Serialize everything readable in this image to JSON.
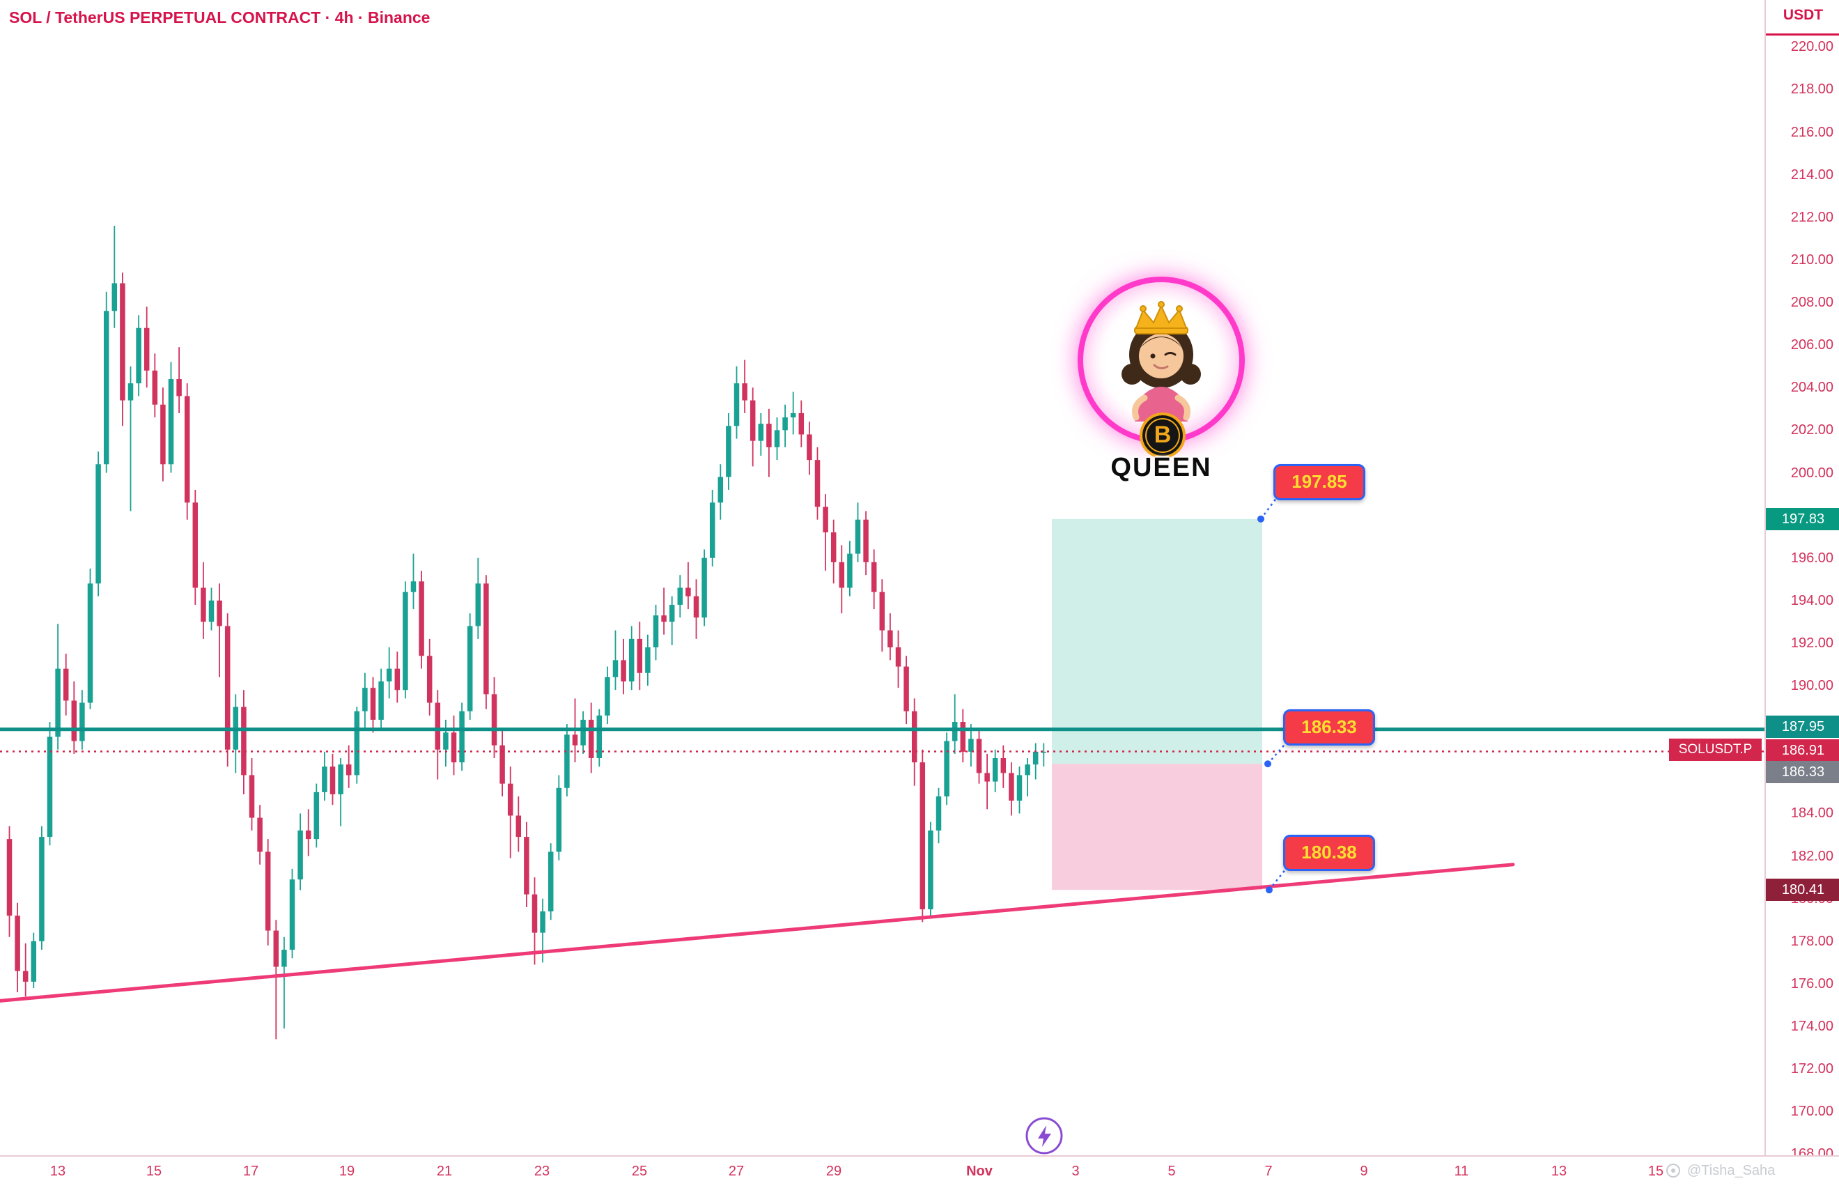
{
  "header": {
    "title": "SOL / TetherUS PERPETUAL CONTRACT · 4h · Binance"
  },
  "axis": {
    "currency": "USDT"
  },
  "price_labels": [
    {
      "value": "197.83",
      "price": 197.83,
      "bg": "#089981"
    },
    {
      "value": "187.95",
      "price": 187.95,
      "bg": "#0e8f88"
    },
    {
      "value": "186.91",
      "price": 186.91,
      "bg": "#d2264c",
      "tag": "SOLUSDT.P"
    },
    {
      "value": "186.33",
      "price": 186.33,
      "bg": "#7b7f8a"
    },
    {
      "value": "180.41",
      "price": 180.41,
      "bg": "#8e2039"
    }
  ],
  "callouts": [
    {
      "text": "197.85"
    },
    {
      "text": "186.33"
    },
    {
      "text": "180.38"
    }
  ],
  "logo": {
    "text": "QUEEN",
    "coin_letter": "B"
  },
  "watermark": {
    "handle": "@Tisha_Saha"
  },
  "chart_data": {
    "type": "candlestick",
    "title": "SOL / TetherUS PERPETUAL CONTRACT",
    "timeframe": "4h",
    "exchange": "Binance",
    "y_axis": {
      "min": 168,
      "max": 220,
      "step": 2,
      "unit": "USDT"
    },
    "x_axis": {
      "labels": [
        "13",
        "15",
        "17",
        "19",
        "21",
        "23",
        "25",
        "27",
        "29",
        "Nov",
        "3",
        "5",
        "7",
        "9",
        "11",
        "13",
        "15"
      ]
    },
    "up_color": "#19a193",
    "down_color": "#d1335f",
    "overlays": {
      "horizontal_line": {
        "price": 187.95,
        "color": "#0e8f88"
      },
      "last_price_line": {
        "price": 186.91,
        "color": "#d2264c",
        "style": "dotted"
      },
      "trendline": {
        "from_price": 175.2,
        "to_price": 181.6,
        "color": "#ee3b77"
      },
      "long_position": {
        "entry": 186.33,
        "target": 197.83,
        "stop": 180.41,
        "profit_fill": "rgba(170,225,215,0.55)",
        "loss_fill": "rgba(242,166,196,0.55)"
      }
    },
    "candles": [
      [
        182.8,
        183.4,
        178.2,
        179.2
      ],
      [
        179.2,
        179.8,
        175.6,
        176.6
      ],
      [
        176.6,
        177.9,
        175.4,
        176.1
      ],
      [
        176.1,
        178.4,
        175.8,
        178.0
      ],
      [
        178.0,
        183.4,
        177.6,
        182.9
      ],
      [
        182.9,
        188.3,
        182.5,
        187.6
      ],
      [
        187.6,
        192.9,
        187.0,
        190.8
      ],
      [
        190.8,
        191.5,
        188.6,
        189.3
      ],
      [
        189.3,
        190.2,
        186.8,
        187.4
      ],
      [
        187.4,
        189.8,
        187.0,
        189.2
      ],
      [
        189.2,
        195.5,
        188.9,
        194.8
      ],
      [
        194.8,
        201.0,
        194.2,
        200.4
      ],
      [
        200.4,
        208.5,
        200.0,
        207.6
      ],
      [
        207.6,
        211.6,
        206.8,
        208.9
      ],
      [
        208.9,
        209.4,
        202.2,
        203.4
      ],
      [
        203.4,
        205.0,
        198.2,
        204.2
      ],
      [
        204.2,
        207.4,
        203.6,
        206.8
      ],
      [
        206.8,
        207.8,
        204.0,
        204.8
      ],
      [
        204.8,
        205.6,
        202.6,
        203.2
      ],
      [
        203.2,
        204.0,
        199.6,
        200.4
      ],
      [
        200.4,
        205.2,
        200.0,
        204.4
      ],
      [
        204.4,
        205.9,
        202.8,
        203.6
      ],
      [
        203.6,
        204.2,
        197.8,
        198.6
      ],
      [
        198.6,
        199.2,
        193.8,
        194.6
      ],
      [
        194.6,
        195.8,
        192.2,
        193.0
      ],
      [
        193.0,
        194.6,
        192.6,
        194.0
      ],
      [
        194.0,
        194.8,
        190.4,
        192.8
      ],
      [
        192.8,
        193.4,
        186.2,
        187.0
      ],
      [
        187.0,
        189.6,
        185.9,
        189.0
      ],
      [
        189.0,
        189.8,
        184.9,
        185.8
      ],
      [
        185.8,
        186.6,
        183.2,
        183.8
      ],
      [
        183.8,
        184.4,
        181.6,
        182.2
      ],
      [
        182.2,
        182.8,
        177.8,
        178.5
      ],
      [
        178.5,
        179.0,
        173.4,
        176.8
      ],
      [
        176.8,
        178.2,
        173.9,
        177.6
      ],
      [
        177.6,
        181.4,
        177.2,
        180.9
      ],
      [
        180.9,
        184.0,
        180.4,
        183.2
      ],
      [
        183.2,
        184.2,
        182.0,
        182.8
      ],
      [
        182.8,
        185.4,
        182.4,
        185.0
      ],
      [
        185.0,
        186.9,
        184.6,
        186.2
      ],
      [
        186.2,
        186.8,
        184.4,
        184.9
      ],
      [
        184.9,
        186.6,
        183.4,
        186.3
      ],
      [
        186.3,
        187.2,
        185.2,
        185.8
      ],
      [
        185.8,
        189.0,
        185.4,
        188.8
      ],
      [
        188.8,
        190.6,
        188.0,
        189.9
      ],
      [
        189.9,
        190.4,
        187.8,
        188.4
      ],
      [
        188.4,
        190.8,
        188.0,
        190.2
      ],
      [
        190.2,
        191.8,
        189.4,
        190.8
      ],
      [
        190.8,
        191.6,
        189.2,
        189.8
      ],
      [
        189.8,
        194.9,
        189.4,
        194.4
      ],
      [
        194.4,
        196.2,
        193.6,
        194.9
      ],
      [
        194.9,
        195.4,
        190.8,
        191.4
      ],
      [
        191.4,
        192.2,
        188.6,
        189.2
      ],
      [
        189.2,
        189.8,
        185.6,
        187.0
      ],
      [
        187.0,
        188.4,
        186.2,
        187.8
      ],
      [
        187.8,
        188.6,
        185.8,
        186.4
      ],
      [
        186.4,
        189.2,
        186.0,
        188.8
      ],
      [
        188.8,
        193.4,
        188.4,
        192.8
      ],
      [
        192.8,
        196.0,
        192.2,
        194.8
      ],
      [
        194.8,
        195.2,
        188.9,
        189.6
      ],
      [
        189.6,
        190.4,
        186.6,
        187.2
      ],
      [
        187.2,
        188.0,
        184.8,
        185.4
      ],
      [
        185.4,
        186.2,
        181.9,
        183.9
      ],
      [
        183.9,
        184.8,
        182.2,
        182.9
      ],
      [
        182.9,
        183.6,
        179.6,
        180.2
      ],
      [
        180.2,
        181.0,
        176.9,
        178.4
      ],
      [
        178.4,
        180.0,
        177.0,
        179.4
      ],
      [
        179.4,
        182.6,
        179.0,
        182.2
      ],
      [
        182.2,
        185.8,
        181.8,
        185.2
      ],
      [
        185.2,
        188.2,
        184.8,
        187.7
      ],
      [
        187.7,
        189.4,
        186.4,
        187.2
      ],
      [
        187.2,
        188.8,
        186.8,
        188.4
      ],
      [
        188.4,
        189.2,
        185.9,
        186.6
      ],
      [
        186.6,
        188.9,
        186.2,
        188.6
      ],
      [
        188.6,
        190.9,
        188.2,
        190.4
      ],
      [
        190.4,
        192.6,
        189.8,
        191.2
      ],
      [
        191.2,
        192.2,
        189.6,
        190.2
      ],
      [
        190.2,
        192.8,
        189.8,
        192.2
      ],
      [
        192.2,
        193.0,
        189.8,
        190.6
      ],
      [
        190.6,
        192.4,
        190.0,
        191.8
      ],
      [
        191.8,
        193.8,
        191.2,
        193.3
      ],
      [
        193.3,
        194.6,
        192.4,
        193.0
      ],
      [
        193.0,
        194.2,
        191.9,
        193.8
      ],
      [
        193.8,
        195.2,
        193.2,
        194.6
      ],
      [
        194.6,
        195.8,
        193.6,
        194.2
      ],
      [
        194.2,
        195.0,
        192.2,
        193.2
      ],
      [
        193.2,
        196.4,
        192.8,
        196.0
      ],
      [
        196.0,
        199.2,
        195.6,
        198.6
      ],
      [
        198.6,
        200.4,
        197.8,
        199.8
      ],
      [
        199.8,
        202.8,
        199.2,
        202.2
      ],
      [
        202.2,
        205.0,
        201.6,
        204.2
      ],
      [
        204.2,
        205.3,
        202.8,
        203.4
      ],
      [
        203.4,
        204.0,
        200.3,
        201.5
      ],
      [
        201.5,
        202.8,
        200.8,
        202.3
      ],
      [
        202.3,
        203.0,
        199.8,
        201.2
      ],
      [
        201.2,
        202.6,
        200.6,
        202.0
      ],
      [
        202.0,
        203.2,
        201.2,
        202.6
      ],
      [
        202.6,
        203.8,
        201.8,
        202.8
      ],
      [
        202.8,
        203.4,
        201.2,
        201.8
      ],
      [
        201.8,
        202.4,
        199.9,
        200.6
      ],
      [
        200.6,
        201.2,
        197.8,
        198.4
      ],
      [
        198.4,
        199.0,
        195.4,
        197.2
      ],
      [
        197.2,
        197.8,
        194.8,
        195.8
      ],
      [
        195.8,
        196.6,
        193.4,
        194.6
      ],
      [
        194.6,
        196.8,
        194.2,
        196.2
      ],
      [
        196.2,
        198.6,
        195.8,
        197.8
      ],
      [
        197.8,
        198.2,
        195.2,
        195.8
      ],
      [
        195.8,
        196.4,
        193.6,
        194.4
      ],
      [
        194.4,
        195.0,
        191.6,
        192.6
      ],
      [
        192.6,
        193.4,
        191.2,
        191.8
      ],
      [
        191.8,
        192.6,
        189.9,
        190.9
      ],
      [
        190.9,
        191.4,
        188.2,
        188.8
      ],
      [
        188.8,
        189.4,
        185.3,
        186.4
      ],
      [
        186.4,
        187.0,
        178.9,
        179.5
      ],
      [
        179.5,
        183.6,
        179.2,
        183.2
      ],
      [
        183.2,
        185.2,
        182.6,
        184.8
      ],
      [
        184.8,
        187.8,
        184.4,
        187.4
      ],
      [
        187.4,
        189.6,
        186.8,
        188.3
      ],
      [
        188.3,
        188.9,
        186.4,
        186.9
      ],
      [
        186.9,
        188.2,
        186.2,
        187.5
      ],
      [
        187.5,
        188.0,
        185.4,
        185.9
      ],
      [
        185.9,
        186.8,
        184.2,
        185.5
      ],
      [
        185.5,
        187.0,
        185.0,
        186.6
      ],
      [
        186.6,
        187.2,
        185.2,
        185.9
      ],
      [
        185.9,
        186.4,
        183.9,
        184.6
      ],
      [
        184.6,
        186.2,
        184.0,
        185.8
      ],
      [
        185.8,
        186.6,
        184.8,
        186.3
      ],
      [
        186.3,
        187.3,
        185.6,
        186.9
      ],
      [
        186.9,
        187.3,
        186.2,
        186.9
      ]
    ]
  }
}
